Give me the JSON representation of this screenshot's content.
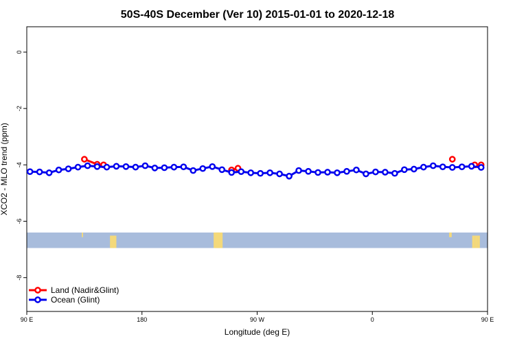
{
  "chart_data": {
    "type": "line",
    "title": "50S-40S December (Ver 10)   2015-01-01 to 2020-12-18",
    "xlabel": "Longitude (deg E)",
    "ylabel": "XCO2 - MLO trend (ppm)",
    "xlim": [
      90,
      450
    ],
    "ylim": [
      -9.2,
      0.9
    ],
    "x_ticks": [
      {
        "value": 90,
        "label": "90 E"
      },
      {
        "value": 180,
        "label": "180"
      },
      {
        "value": 270,
        "label": "90 W"
      },
      {
        "value": 360,
        "label": "0"
      },
      {
        "value": 450,
        "label": "90 E"
      },
      {
        "value": 540,
        "label": "180"
      }
    ],
    "y_ticks": [
      0,
      -2,
      -4,
      -6,
      -8
    ],
    "legend_position": "bottom-left",
    "series": [
      {
        "name": "Land (Nadir&Glint)",
        "color": "#ff0000",
        "segments": [
          {
            "x": [
              135,
              145,
              150
            ],
            "y": [
              -3.8,
              -3.98,
              -4.0
            ]
          },
          {
            "x": [
              250,
              255
            ],
            "y": [
              -4.18,
              -4.12
            ]
          },
          {
            "x": [
              422.5
            ],
            "y": [
              -3.8
            ]
          },
          {
            "x": [
              440,
              445
            ],
            "y": [
              -4.0,
              -4.0
            ]
          }
        ]
      },
      {
        "name": "Ocean (Glint)",
        "color": "#0000ee",
        "x": [
          92.5,
          100,
          107.5,
          115,
          122.5,
          130,
          137.5,
          145,
          152.5,
          160,
          167.5,
          175,
          182.5,
          190,
          197.5,
          205,
          212.5,
          220,
          227.5,
          235,
          242.5,
          250,
          257.5,
          265,
          272.5,
          280,
          287.5,
          295,
          302.5,
          310,
          317.5,
          325,
          332.5,
          340,
          347.5,
          355,
          362.5,
          370,
          377.5,
          385,
          392.5,
          400,
          407.5,
          415,
          422.5,
          430,
          437.5,
          445
        ],
        "y": [
          -4.24,
          -4.25,
          -4.28,
          -4.18,
          -4.14,
          -4.08,
          -4.03,
          -4.06,
          -4.08,
          -4.05,
          -4.06,
          -4.08,
          -4.03,
          -4.11,
          -4.1,
          -4.08,
          -4.07,
          -4.2,
          -4.13,
          -4.06,
          -4.17,
          -4.27,
          -4.24,
          -4.28,
          -4.3,
          -4.28,
          -4.32,
          -4.4,
          -4.2,
          -4.23,
          -4.27,
          -4.26,
          -4.28,
          -4.23,
          -4.18,
          -4.32,
          -4.25,
          -4.26,
          -4.3,
          -4.17,
          -4.15,
          -4.08,
          -4.03,
          -4.07,
          -4.09,
          -4.07,
          -4.05,
          -4.09
        ]
      }
    ],
    "map_strip": {
      "y_range": [
        -6.4,
        -6.95
      ],
      "ocean_color": "#a8bcdc",
      "land_color": "#f4d97a",
      "land_x": [
        [
          133,
          134
        ],
        [
          155,
          158
        ],
        [
          157,
          160
        ],
        [
          236,
          240
        ],
        [
          237,
          241
        ],
        [
          238,
          243
        ],
        [
          420,
          422
        ],
        [
          438,
          440
        ],
        [
          440,
          442
        ],
        [
          442,
          444
        ]
      ]
    }
  }
}
